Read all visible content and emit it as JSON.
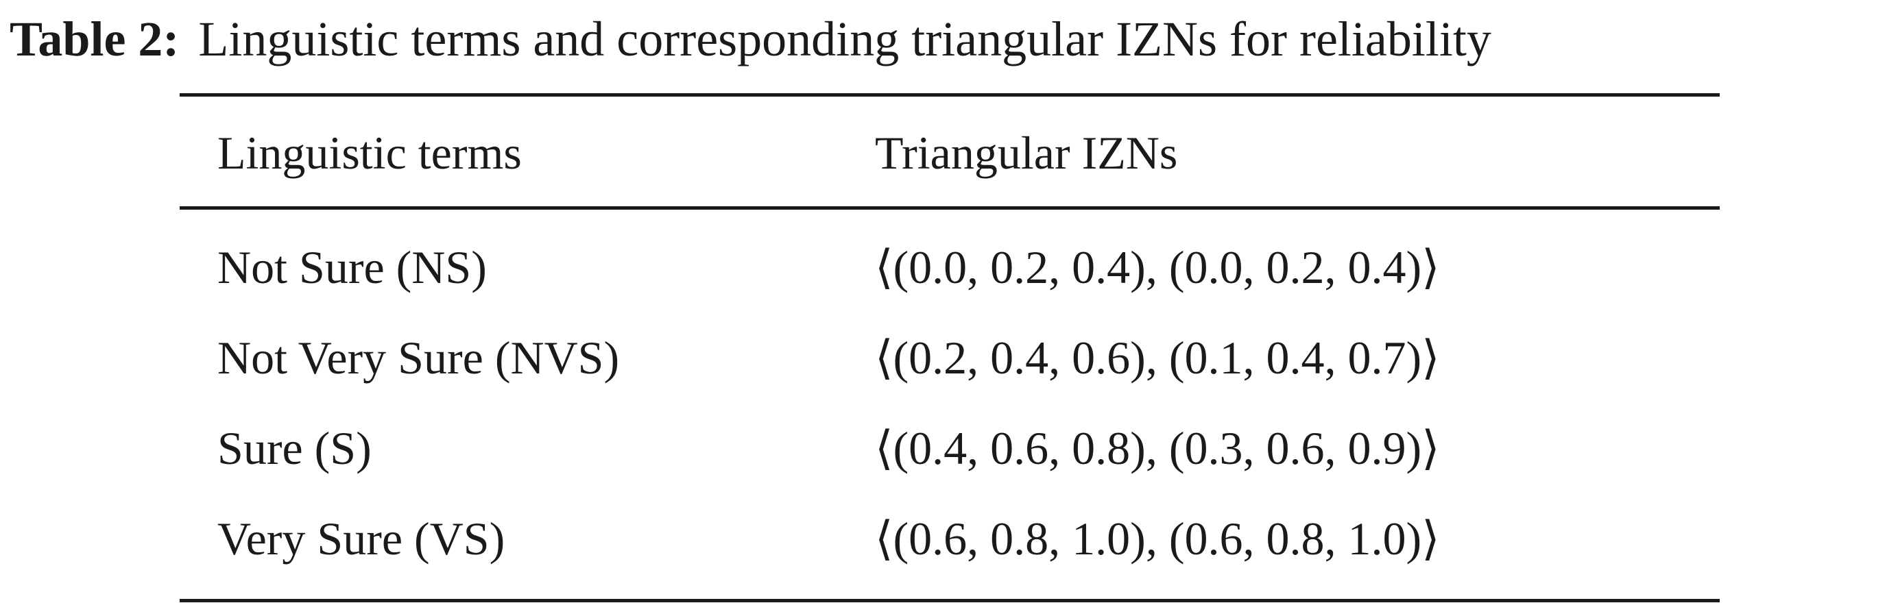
{
  "caption": {
    "label": "Table 2:",
    "text": "Linguistic terms and corresponding triangular IZNs for reliability"
  },
  "table": {
    "headers": [
      "Linguistic terms",
      "Triangular IZNs"
    ],
    "rows": [
      {
        "term": "Not Sure (NS)",
        "izn": "⟨(0.0, 0.2, 0.4), (0.0, 0.2, 0.4)⟩"
      },
      {
        "term": "Not Very Sure (NVS)",
        "izn": "⟨(0.2, 0.4, 0.6), (0.1, 0.4, 0.7)⟩"
      },
      {
        "term": "Sure (S)",
        "izn": "⟨(0.4, 0.6, 0.8), (0.3, 0.6, 0.9)⟩"
      },
      {
        "term": "Very Sure (VS)",
        "izn": "⟨(0.6, 0.8, 1.0), (0.6, 0.8, 1.0)⟩"
      }
    ]
  }
}
